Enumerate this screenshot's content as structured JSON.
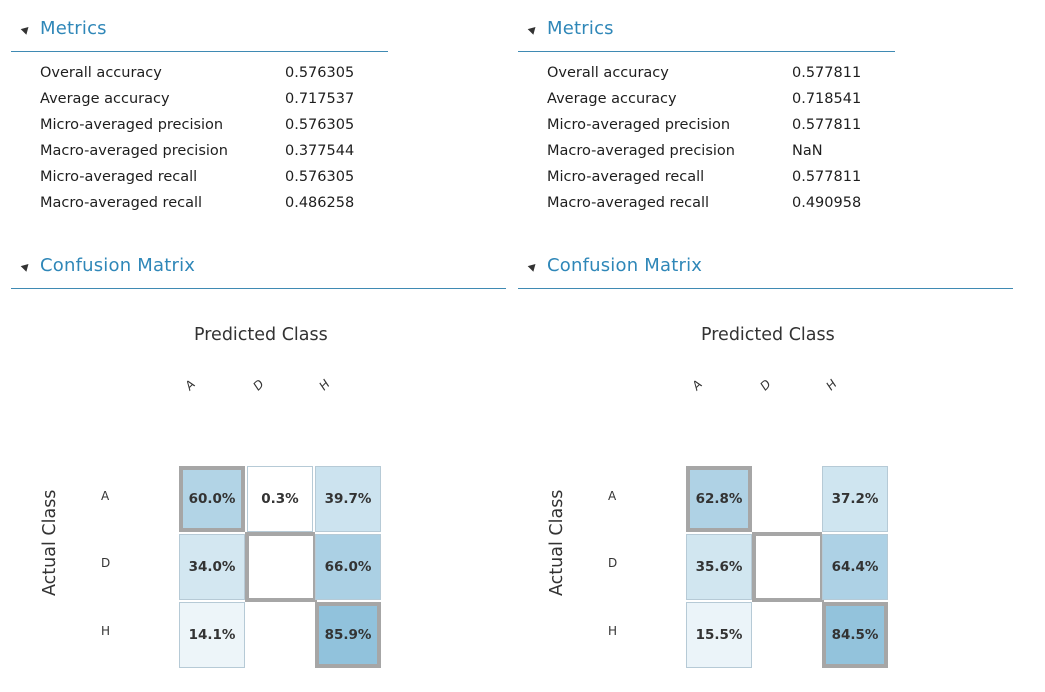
{
  "panels": [
    {
      "metrics_title": "Metrics",
      "metrics": [
        {
          "name": "Overall accuracy",
          "value": "0.576305"
        },
        {
          "name": "Average accuracy",
          "value": "0.717537"
        },
        {
          "name": "Micro-averaged precision",
          "value": "0.576305"
        },
        {
          "name": "Macro-averaged precision",
          "value": "0.377544"
        },
        {
          "name": "Micro-averaged recall",
          "value": "0.576305"
        },
        {
          "name": "Macro-averaged recall",
          "value": "0.486258"
        }
      ],
      "confusion_title": "Confusion Matrix",
      "predicted_label": "Predicted Class",
      "actual_label": "Actual Class",
      "classes": [
        "A",
        "D",
        "H"
      ],
      "cells": [
        [
          "60.0%",
          "0.3%",
          "39.7%"
        ],
        [
          "34.0%",
          "",
          "66.0%"
        ],
        [
          "14.1%",
          "",
          "85.9%"
        ]
      ],
      "fractions": [
        [
          0.6,
          0.003,
          0.397
        ],
        [
          0.34,
          0.0,
          0.66
        ],
        [
          0.141,
          0.0,
          0.859
        ]
      ]
    },
    {
      "metrics_title": "Metrics",
      "metrics": [
        {
          "name": "Overall accuracy",
          "value": "0.577811"
        },
        {
          "name": "Average accuracy",
          "value": "0.718541"
        },
        {
          "name": "Micro-averaged precision",
          "value": "0.577811"
        },
        {
          "name": "Macro-averaged precision",
          "value": "NaN"
        },
        {
          "name": "Micro-averaged recall",
          "value": "0.577811"
        },
        {
          "name": "Macro-averaged recall",
          "value": "0.490958"
        }
      ],
      "confusion_title": "Confusion Matrix",
      "predicted_label": "Predicted Class",
      "actual_label": "Actual Class",
      "classes": [
        "A",
        "D",
        "H"
      ],
      "cells": [
        [
          "62.8%",
          "",
          "37.2%"
        ],
        [
          "35.6%",
          "",
          "64.4%"
        ],
        [
          "15.5%",
          "",
          "84.5%"
        ]
      ],
      "fractions": [
        [
          0.628,
          0.0,
          0.372
        ],
        [
          0.356,
          0.0,
          0.644
        ],
        [
          0.155,
          0.0,
          0.845
        ]
      ]
    }
  ],
  "colors": {
    "accent": "#2f87b8",
    "rule": "#3f8ab3",
    "diagonal_border": "#a6a6a6",
    "heat_low": "#ffffff",
    "heat_high": "#7fb8d6"
  }
}
